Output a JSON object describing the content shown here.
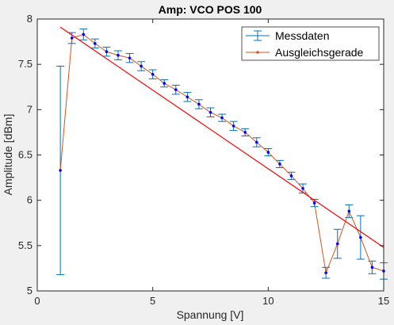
{
  "chart_data": {
    "type": "line",
    "title": "Amp: VCO POS 100",
    "xlabel": "Spannung [V]",
    "ylabel": "Amplitude [dBm]",
    "xlim": [
      0,
      15
    ],
    "ylim": [
      5,
      8
    ],
    "xticks": [
      0,
      5,
      10,
      15
    ],
    "yticks": [
      5,
      5.5,
      6,
      6.5,
      7,
      7.5,
      8
    ],
    "xtick_labels": [
      "0",
      "5",
      "10",
      "15"
    ],
    "ytick_labels": [
      "5",
      "5.5",
      "6",
      "6.5",
      "7",
      "7.5",
      "8"
    ],
    "grid": false,
    "legend_position": "top-right",
    "series": [
      {
        "name": "Messdaten",
        "color": "#0072bd",
        "marker_color": "#0000ff",
        "x": [
          1,
          1.5,
          2,
          2.5,
          3,
          3.5,
          4,
          4.5,
          5,
          5.5,
          6,
          6.5,
          7,
          7.5,
          8,
          8.5,
          9,
          9.5,
          10,
          10.5,
          11,
          11.5,
          12,
          12.5,
          13,
          13.5,
          14,
          14.5,
          15
        ],
        "y": [
          6.33,
          7.79,
          7.83,
          7.73,
          7.64,
          7.6,
          7.57,
          7.48,
          7.39,
          7.29,
          7.22,
          7.14,
          7.06,
          6.97,
          6.91,
          6.82,
          6.75,
          6.64,
          6.53,
          6.4,
          6.27,
          6.13,
          5.97,
          5.2,
          5.52,
          5.88,
          5.59,
          5.26,
          5.22
        ],
        "error": [
          1.15,
          0.06,
          0.06,
          0.05,
          0.05,
          0.05,
          0.05,
          0.05,
          0.05,
          0.04,
          0.05,
          0.05,
          0.05,
          0.05,
          0.04,
          0.05,
          0.04,
          0.05,
          0.04,
          0.04,
          0.04,
          0.05,
          0.04,
          0.06,
          0.16,
          0.07,
          0.24,
          0.07,
          0.09
        ]
      },
      {
        "name": "Ausgleichsgerade",
        "color": "#ff0000",
        "connector_color": "#d95319",
        "x": [
          1,
          15
        ],
        "y": [
          7.91,
          5.48
        ]
      }
    ]
  }
}
